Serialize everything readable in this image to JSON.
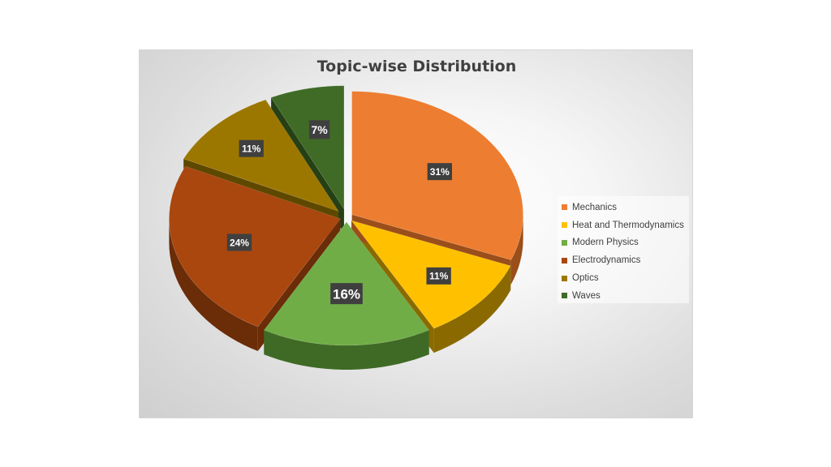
{
  "chart_data": {
    "type": "pie",
    "style": "3d-exploded",
    "title": "Topic-wise Distribution",
    "slices": [
      {
        "label": "Mechanics",
        "value": 31,
        "display": "31%",
        "color": "#ED7D31",
        "side": "#9a4e1a"
      },
      {
        "label": "Heat and Thermodynamics",
        "value": 11,
        "display": "11%",
        "color": "#FFC000",
        "side": "#8a6a00"
      },
      {
        "label": "Modern Physics",
        "value": 16,
        "display": "16%",
        "color": "#70AD47",
        "side": "#3f6a25"
      },
      {
        "label": "Electrodynamics",
        "value": 24,
        "display": "24%",
        "color": "#A9470F",
        "side": "#6b2c08"
      },
      {
        "label": "Optics",
        "value": 11,
        "display": "11%",
        "color": "#9C7700",
        "side": "#5e4800"
      },
      {
        "label": "Waves",
        "value": 7,
        "display": "7%",
        "color": "#3F6B26",
        "side": "#254014"
      }
    ],
    "legend_position": "right"
  }
}
